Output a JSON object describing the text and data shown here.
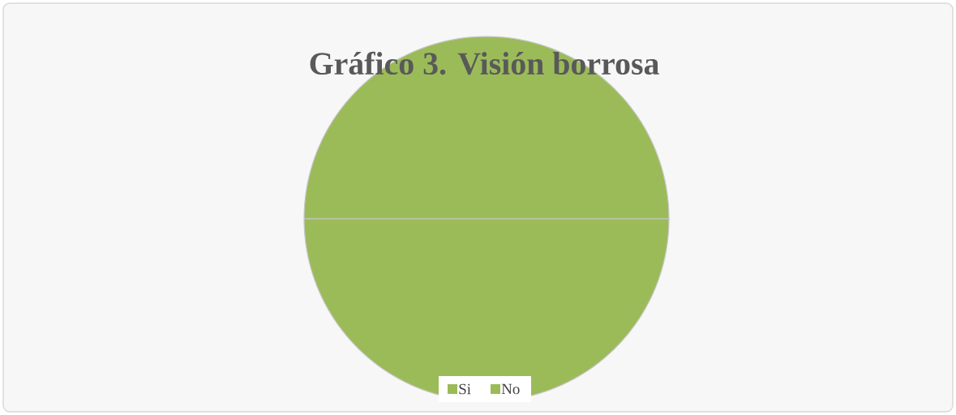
{
  "chart_data": {
    "type": "pie",
    "title": "Gráfico 3. Visión borrosa",
    "categories": [
      "Si",
      "No"
    ],
    "values": [
      50,
      50
    ],
    "colors": [
      "#9bbb59",
      "#9bbb59"
    ],
    "legend": "bottom"
  }
}
